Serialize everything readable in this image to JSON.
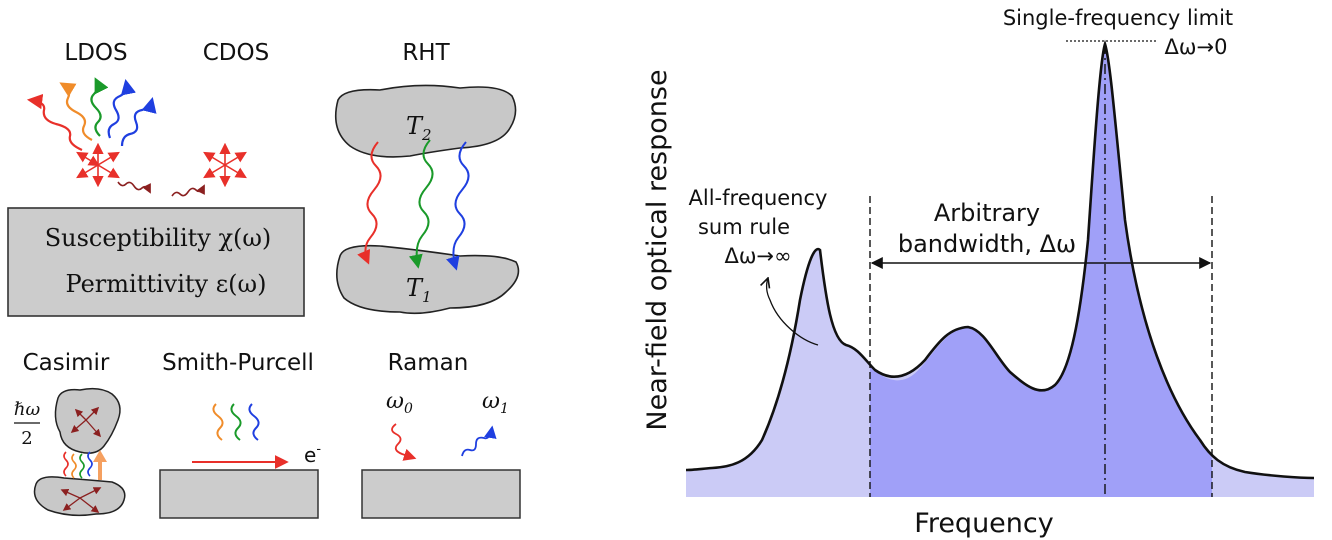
{
  "left": {
    "labels": {
      "ldos": "LDOS",
      "cdos": "CDOS",
      "rht": "RHT",
      "casimir": "Casimir",
      "smith_purcell": "Smith-Purcell",
      "raman": "Raman"
    },
    "material_box": {
      "line1": "Susceptibility χ(ω)",
      "line2": "Permittivity ε(ω)"
    },
    "rht": {
      "t_top": "T",
      "t_top_sub": "2",
      "t_bottom": "T",
      "t_bottom_sub": "1"
    },
    "casimir": {
      "energy_num": "ℏω",
      "energy_den": "2"
    },
    "smith_purcell": {
      "electron": "e",
      "electron_sup": "-"
    },
    "raman": {
      "omega0": "ω",
      "omega0_sub": "0",
      "omega1": "ω",
      "omega1_sub": "1"
    },
    "colors": {
      "red": "#e8302a",
      "orange": "#f08c2a",
      "green": "#1a9a2a",
      "blue": "#1f3fe0",
      "dark_red": "#8b2020",
      "gray": "#cccccc",
      "blob_gray": "#c8c8c8"
    }
  },
  "right": {
    "ylabel": "Near-field optical response",
    "xlabel": "Frequency",
    "annotations": {
      "single_line1": "Single-frequency limit",
      "single_line2": "Δω→0",
      "allfreq_line1": "All-frequency",
      "allfreq_line2": "sum rule",
      "allfreq_line3": "Δω→∞",
      "arbitrary_line1": "Arbitrary",
      "arbitrary_line2": "bandwidth, Δω"
    },
    "colors": {
      "light_fill": "#cbcbf6",
      "band_fill": "#a0a0f8",
      "curve": "#111111"
    }
  }
}
